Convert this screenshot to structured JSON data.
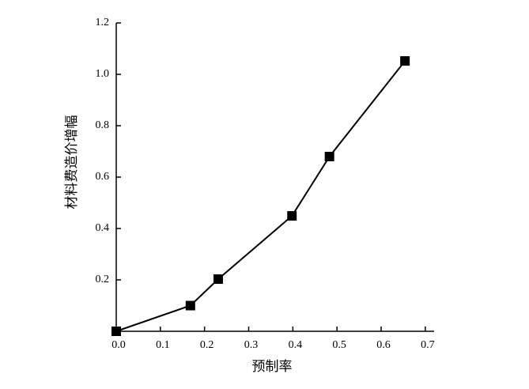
{
  "chart_data": {
    "type": "line",
    "x_label": "预制率",
    "y_label": "材料费造价增幅",
    "series": [
      {
        "name": "材料费造价增幅",
        "color": "#000000",
        "marker": "square",
        "x": [
          0,
          0.168,
          0.231,
          0.398,
          0.483,
          0.654
        ],
        "values": [
          0,
          0.1,
          0.203,
          0.449,
          0.68,
          1.052
        ]
      }
    ],
    "xlim": [
      0,
      0.72
    ],
    "xticks": [
      {
        "value": 0,
        "label": "0.0"
      },
      0.1,
      0.2,
      0.3,
      0.4,
      0.5,
      0.6,
      0.7
    ],
    "ylim": [
      0,
      1.2
    ],
    "yticks": [
      0.2,
      0.4,
      0.6,
      0.8,
      {
        "value": 1,
        "label": "1.0"
      },
      1.2
    ],
    "grid": false
  }
}
